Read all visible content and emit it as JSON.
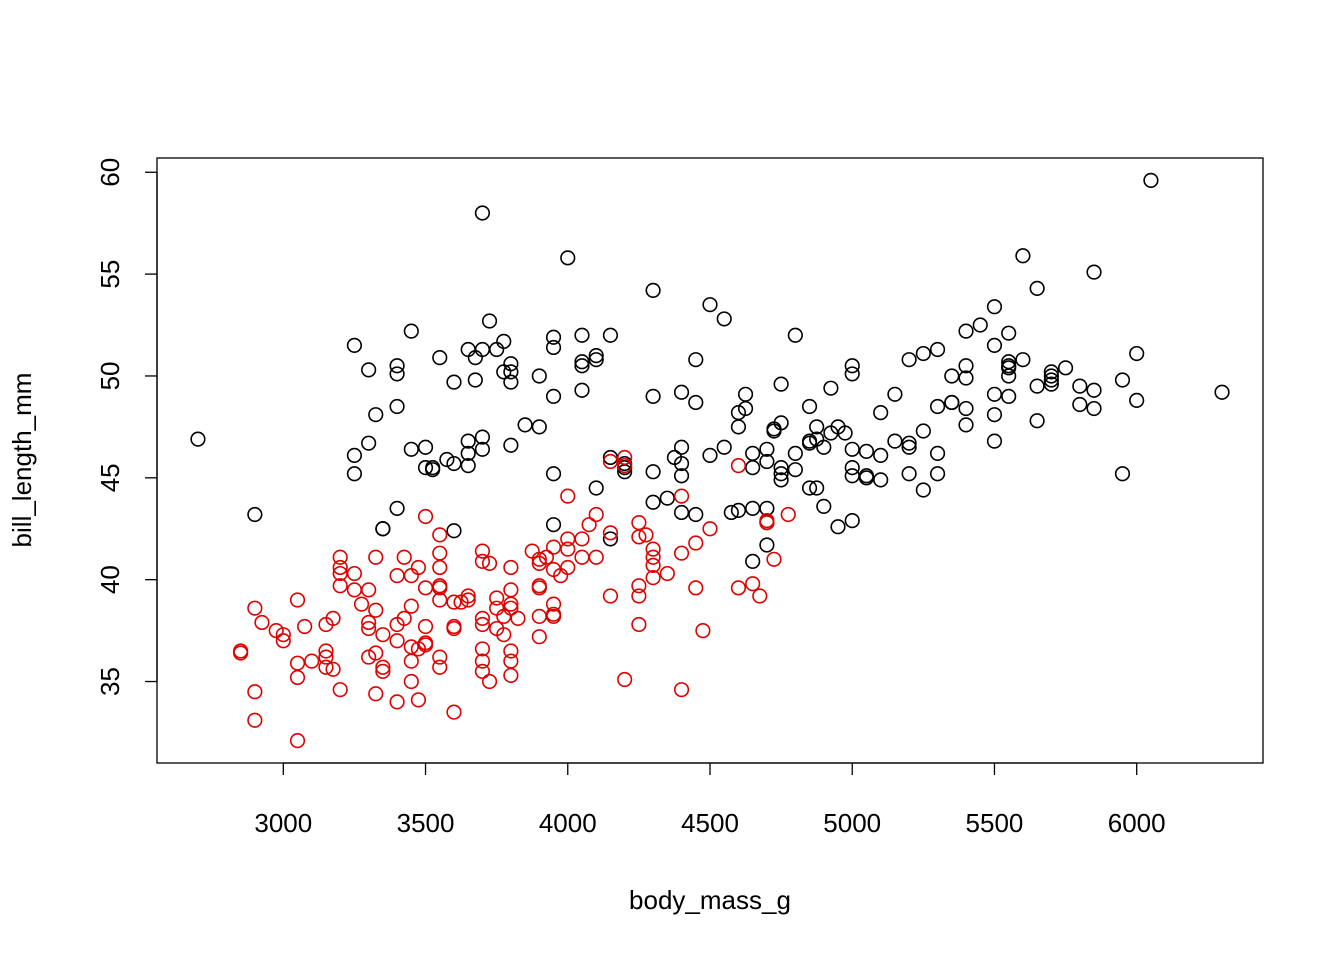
{
  "chart_data": {
    "type": "scatter",
    "xlabel": "body_mass_g",
    "ylabel": "bill_length_mm",
    "xlim": [
      2556,
      6444
    ],
    "ylim": [
      31.0,
      60.7
    ],
    "xticks": [
      3000,
      3500,
      4000,
      4500,
      5000,
      5500,
      6000
    ],
    "yticks": [
      35,
      40,
      45,
      50,
      55,
      60
    ],
    "marker": "open-circle",
    "series": [
      {
        "color": "#000000",
        "x": [
          2700,
          2900,
          3250,
          3250,
          3250,
          3300,
          3300,
          3325,
          3350,
          3350,
          3400,
          3400,
          3400,
          3400,
          3450,
          3450,
          3500,
          3500,
          3525,
          3525,
          3550,
          3575,
          3600,
          3600,
          3600,
          3650,
          3650,
          3650,
          3650,
          3675,
          3675,
          3700,
          3700,
          3700,
          3700,
          3725,
          3750,
          3775,
          3775,
          3800,
          3800,
          3800,
          3800,
          3850,
          3900,
          3900,
          3950,
          3950,
          3950,
          3950,
          3950,
          4000,
          4050,
          4050,
          4050,
          4050,
          4100,
          4100,
          4100,
          4150,
          4150,
          4150,
          4200,
          4200,
          4200,
          4300,
          4300,
          4300,
          4300,
          4350,
          4375,
          4400,
          4400,
          4400,
          4400,
          4400,
          4450,
          4450,
          4450,
          4500,
          4500,
          4550,
          4550,
          4575,
          4600,
          4600,
          4600,
          4625,
          4625,
          4650,
          4650,
          4650,
          4650,
          4700,
          4700,
          4700,
          4700,
          4700,
          4725,
          4725,
          4750,
          4750,
          4750,
          4750,
          4750,
          4800,
          4800,
          4800,
          4850,
          4850,
          4850,
          4850,
          4875,
          4875,
          4875,
          4900,
          4900,
          4925,
          4925,
          4950,
          4950,
          4975,
          5000,
          5000,
          5000,
          5000,
          5000,
          5000,
          5050,
          5050,
          5050,
          5100,
          5100,
          5100,
          5150,
          5150,
          5200,
          5200,
          5200,
          5200,
          5250,
          5250,
          5250,
          5300,
          5300,
          5300,
          5300,
          5350,
          5350,
          5350,
          5400,
          5400,
          5400,
          5400,
          5400,
          5450,
          5500,
          5500,
          5500,
          5500,
          5500,
          5550,
          5550,
          5550,
          5550,
          5550,
          5550,
          5600,
          5600,
          5650,
          5650,
          5650,
          5700,
          5700,
          5700,
          5700,
          5750,
          5800,
          5800,
          5850,
          5850,
          5850,
          5950,
          5950,
          6000,
          6000,
          6050,
          6300
        ],
        "values": [
          46.9,
          43.2,
          51.5,
          46.1,
          45.2,
          50.3,
          46.7,
          48.1,
          42.5,
          42.5,
          50.5,
          50.1,
          48.5,
          43.5,
          52.2,
          46.4,
          46.5,
          45.5,
          45.5,
          45.4,
          50.9,
          45.9,
          49.7,
          45.7,
          42.4,
          51.3,
          46.8,
          46.2,
          45.6,
          50.9,
          49.8,
          58.0,
          51.3,
          47.0,
          46.4,
          52.7,
          51.3,
          51.7,
          50.2,
          50.6,
          50.2,
          49.7,
          46.6,
          47.6,
          50.0,
          47.5,
          51.9,
          51.4,
          49.0,
          45.2,
          42.7,
          55.8,
          52.0,
          50.7,
          50.5,
          49.3,
          51.0,
          50.8,
          44.5,
          52.0,
          46.0,
          42.0,
          45.7,
          45.5,
          45.3,
          54.2,
          49.0,
          45.3,
          43.8,
          44.0,
          46.0,
          49.2,
          46.5,
          45.7,
          45.1,
          43.3,
          50.8,
          48.7,
          43.2,
          53.5,
          46.1,
          52.8,
          46.5,
          43.3,
          48.2,
          47.5,
          43.4,
          49.1,
          48.4,
          46.2,
          45.5,
          43.5,
          40.9,
          46.4,
          45.8,
          43.5,
          42.8,
          41.7,
          47.3,
          47.4,
          49.6,
          47.7,
          45.5,
          45.2,
          44.9,
          52.0,
          46.2,
          45.4,
          48.5,
          46.8,
          46.7,
          44.5,
          47.5,
          46.9,
          44.5,
          46.5,
          43.6,
          49.4,
          47.2,
          47.5,
          42.6,
          47.2,
          50.5,
          50.1,
          46.4,
          45.5,
          45.1,
          42.9,
          46.3,
          45.1,
          45.0,
          48.2,
          46.1,
          44.9,
          49.1,
          46.8,
          50.8,
          46.7,
          46.5,
          45.2,
          51.1,
          47.3,
          44.4,
          51.3,
          48.5,
          46.2,
          45.2,
          50.0,
          48.7,
          48.7,
          52.2,
          50.5,
          49.9,
          48.4,
          47.6,
          52.5,
          53.4,
          51.5,
          49.1,
          48.1,
          46.8,
          52.1,
          50.7,
          50.5,
          50.4,
          50.0,
          49.0,
          55.9,
          50.8,
          54.3,
          49.5,
          47.8,
          50.2,
          50.0,
          49.8,
          49.6,
          50.4,
          49.5,
          48.6,
          55.1,
          49.3,
          48.4,
          49.8,
          45.2,
          51.1,
          48.8,
          59.6,
          49.2
        ]
      },
      {
        "color": "#df0000",
        "x": [
          2850,
          2850,
          2900,
          2900,
          2900,
          2925,
          2975,
          3000,
          3000,
          3050,
          3050,
          3050,
          3050,
          3075,
          3100,
          3150,
          3150,
          3150,
          3150,
          3175,
          3175,
          3200,
          3200,
          3200,
          3200,
          3200,
          3250,
          3250,
          3275,
          3300,
          3300,
          3300,
          3300,
          3325,
          3325,
          3325,
          3325,
          3350,
          3350,
          3350,
          3400,
          3400,
          3400,
          3400,
          3425,
          3425,
          3450,
          3450,
          3450,
          3450,
          3450,
          3475,
          3475,
          3475,
          3500,
          3500,
          3500,
          3500,
          3500,
          3550,
          3550,
          3550,
          3550,
          3550,
          3550,
          3550,
          3550,
          3600,
          3600,
          3600,
          3600,
          3625,
          3650,
          3650,
          3700,
          3700,
          3700,
          3700,
          3700,
          3700,
          3700,
          3725,
          3725,
          3750,
          3750,
          3750,
          3775,
          3775,
          3800,
          3800,
          3800,
          3800,
          3800,
          3800,
          3800,
          3825,
          3875,
          3900,
          3900,
          3900,
          3900,
          3900,
          3900,
          3925,
          3950,
          3950,
          3950,
          3950,
          3950,
          3975,
          4000,
          4000,
          4000,
          4000,
          4050,
          4050,
          4075,
          4100,
          4100,
          4150,
          4150,
          4150,
          4200,
          4200,
          4200,
          4250,
          4250,
          4250,
          4250,
          4250,
          4275,
          4300,
          4300,
          4300,
          4300,
          4350,
          4400,
          4400,
          4400,
          4450,
          4450,
          4475,
          4500,
          4600,
          4600,
          4650,
          4675,
          4700,
          4700,
          4725,
          4775
        ],
        "values": [
          36.5,
          36.4,
          38.6,
          34.5,
          33.1,
          37.9,
          37.5,
          37.3,
          37.0,
          39.0,
          35.9,
          35.2,
          32.1,
          37.7,
          36.0,
          37.8,
          36.5,
          36.2,
          35.7,
          38.1,
          35.6,
          41.1,
          40.6,
          40.3,
          39.7,
          34.6,
          40.3,
          39.5,
          38.8,
          39.5,
          37.9,
          37.6,
          36.2,
          41.1,
          38.5,
          36.4,
          34.4,
          37.3,
          35.7,
          35.5,
          40.2,
          37.8,
          37.0,
          34.0,
          41.1,
          38.1,
          40.2,
          38.7,
          36.7,
          36.0,
          35.0,
          40.6,
          36.6,
          34.1,
          43.1,
          39.6,
          37.7,
          36.9,
          36.8,
          42.2,
          41.3,
          40.6,
          39.7,
          39.6,
          39.0,
          36.2,
          35.7,
          38.9,
          37.7,
          37.6,
          33.5,
          38.9,
          39.2,
          39.0,
          41.4,
          40.9,
          38.1,
          37.8,
          36.6,
          36.0,
          35.5,
          40.8,
          35.0,
          39.1,
          38.6,
          37.6,
          38.2,
          37.3,
          40.6,
          39.5,
          38.8,
          38.6,
          36.5,
          36.0,
          35.3,
          38.1,
          41.4,
          41.0,
          40.8,
          39.7,
          39.6,
          38.2,
          37.2,
          41.1,
          41.6,
          40.5,
          38.8,
          38.3,
          38.2,
          40.2,
          44.1,
          42.0,
          41.5,
          40.6,
          42.0,
          41.1,
          42.7,
          43.2,
          41.1,
          45.8,
          42.3,
          39.2,
          46.0,
          45.6,
          35.1,
          42.8,
          42.1,
          39.7,
          39.2,
          37.8,
          42.2,
          41.5,
          41.1,
          40.7,
          40.1,
          40.3,
          44.1,
          41.3,
          34.6,
          41.8,
          39.6,
          37.5,
          42.5,
          45.6,
          39.6,
          39.8,
          39.2,
          42.9,
          42.8,
          41.0,
          43.2
        ]
      }
    ]
  }
}
